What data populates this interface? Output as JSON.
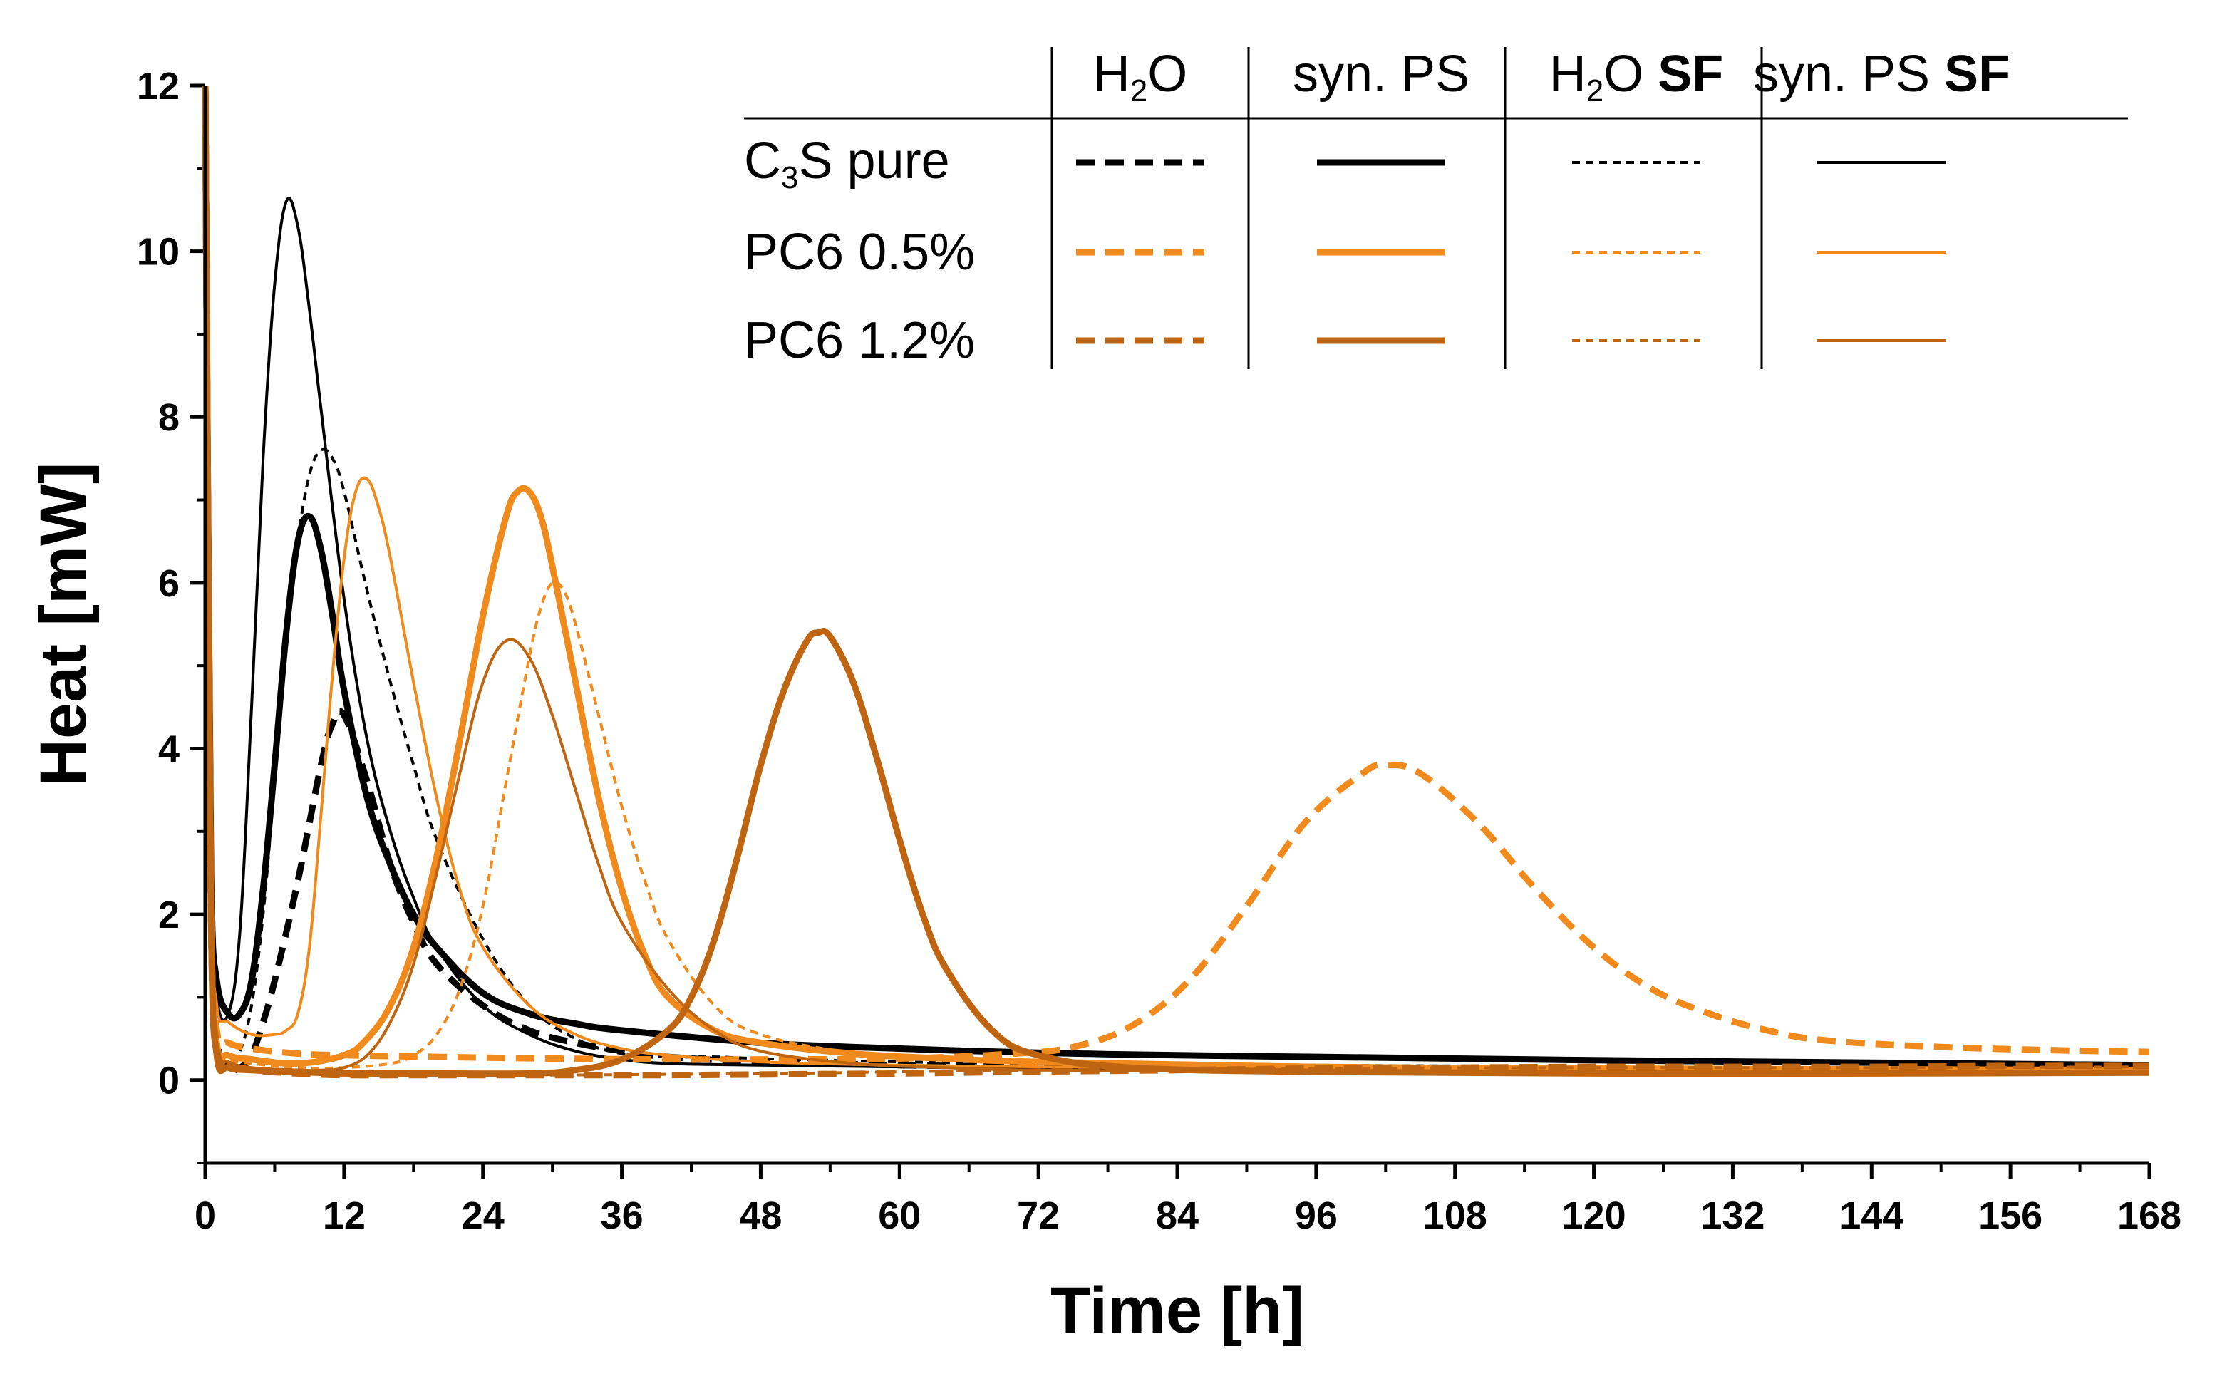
{
  "chart_data": {
    "type": "line",
    "title": "",
    "xlabel": "Time [h]",
    "ylabel": "Heat [mW]",
    "xlim": [
      0,
      168
    ],
    "ylim": [
      -1,
      12
    ],
    "xticks": [
      0,
      12,
      24,
      36,
      48,
      60,
      72,
      84,
      96,
      108,
      120,
      132,
      144,
      156,
      168
    ],
    "yticks": [
      0,
      2,
      4,
      6,
      8,
      10,
      12
    ],
    "x_tick_labels": [
      "0",
      "12",
      "24",
      "36",
      "48",
      "60",
      "72",
      "84",
      "96",
      "108",
      "120",
      "132",
      "144",
      "156",
      "168"
    ],
    "y_tick_labels": [
      "0",
      "2",
      "4",
      "6",
      "8",
      "10",
      "12"
    ],
    "colors": {
      "c3s_pure": "#000000",
      "pc6_05": "#F08A1C",
      "pc6_12": "#BF6410"
    },
    "legend": {
      "columns": [
        {
          "main": "H",
          "sub": "2",
          "rest": "O",
          "bold": ""
        },
        {
          "main": "syn. PS",
          "sub": "",
          "rest": "",
          "bold": ""
        },
        {
          "main": "H",
          "sub": "2",
          "rest": "O ",
          "bold": "SF"
        },
        {
          "main": "syn. PS ",
          "sub": "",
          "rest": "",
          "bold": "SF"
        }
      ],
      "rows": [
        {
          "main": "C",
          "sub": "3",
          "rest": "S pure"
        },
        {
          "main": "PC6 0.5%",
          "sub": "",
          "rest": ""
        },
        {
          "main": "PC6 1.2%",
          "sub": "",
          "rest": ""
        }
      ]
    },
    "series": [
      {
        "name": "C3S pure, H2O",
        "color_key": "c3s_pure",
        "style": "dashed-thick",
        "x": [
          0,
          0.5,
          1,
          2,
          3,
          4,
          5,
          6,
          8,
          10,
          11,
          12,
          14,
          16,
          18,
          20,
          24,
          28,
          32,
          36,
          40,
          48,
          60,
          72,
          84,
          96,
          120,
          144,
          168
        ],
        "y": [
          12,
          2,
          0.5,
          0.15,
          0.15,
          0.3,
          0.7,
          1.2,
          2.4,
          3.8,
          4.3,
          4.4,
          3.6,
          2.6,
          1.9,
          1.4,
          0.9,
          0.6,
          0.45,
          0.35,
          0.28,
          0.22,
          0.18,
          0.16,
          0.15,
          0.14,
          0.13,
          0.12,
          0.12
        ]
      },
      {
        "name": "C3S pure, syn. PS",
        "color_key": "c3s_pure",
        "style": "solid-thick",
        "x": [
          0,
          0.5,
          1,
          2,
          3,
          4,
          5,
          6,
          7,
          8,
          9,
          10,
          11,
          12,
          14,
          16,
          18,
          20,
          24,
          28,
          32,
          36,
          48,
          60,
          72,
          84,
          96,
          120,
          144,
          168
        ],
        "y": [
          12,
          2.5,
          1.2,
          0.8,
          0.8,
          1.2,
          2.3,
          3.8,
          5.4,
          6.5,
          6.8,
          6.4,
          5.6,
          4.7,
          3.4,
          2.6,
          2.0,
          1.6,
          1.05,
          0.8,
          0.68,
          0.6,
          0.45,
          0.38,
          0.33,
          0.3,
          0.28,
          0.24,
          0.21,
          0.18
        ]
      },
      {
        "name": "C3S pure, H2O SF",
        "color_key": "c3s_pure",
        "style": "dotted-thin",
        "x": [
          0,
          0.5,
          1,
          2,
          3,
          4,
          5,
          6,
          7,
          8,
          9,
          10,
          11,
          12,
          14,
          16,
          18,
          20,
          24,
          28,
          32,
          36,
          40,
          44,
          48,
          60,
          72,
          96,
          120,
          144,
          168
        ],
        "y": [
          12,
          2,
          0.5,
          0.2,
          0.35,
          0.9,
          2.0,
          3.6,
          5.2,
          6.5,
          7.3,
          7.6,
          7.5,
          7.1,
          5.9,
          4.8,
          3.8,
          2.9,
          1.7,
          0.9,
          0.5,
          0.32,
          0.28,
          0.28,
          0.26,
          0.22,
          0.2,
          0.18,
          0.16,
          0.14,
          0.12
        ]
      },
      {
        "name": "C3S pure, syn. PS SF",
        "color_key": "c3s_pure",
        "style": "solid-thin",
        "x": [
          0,
          0.5,
          1,
          2,
          3,
          4,
          5,
          6,
          7,
          8,
          9,
          10,
          12,
          14,
          16,
          18,
          20,
          24,
          28,
          32,
          36,
          40,
          48,
          60,
          72,
          96,
          120,
          144,
          168
        ],
        "y": [
          12,
          2.5,
          1.0,
          0.8,
          1.8,
          4.5,
          7.5,
          9.6,
          10.6,
          10.3,
          9.3,
          8.1,
          5.8,
          4.1,
          3.0,
          2.2,
          1.6,
          0.9,
          0.55,
          0.35,
          0.25,
          0.2,
          0.18,
          0.16,
          0.15,
          0.14,
          0.13,
          0.12,
          0.12
        ]
      },
      {
        "name": "PC6 0.5%, H2O",
        "color_key": "pc6_05",
        "style": "dashed-thick",
        "x": [
          0,
          0.5,
          1,
          2,
          4,
          8,
          12,
          20,
          30,
          40,
          50,
          60,
          70,
          75,
          80,
          85,
          90,
          95,
          100,
          102,
          105,
          110,
          115,
          120,
          125,
          130,
          135,
          140,
          150,
          160,
          168
        ],
        "y": [
          12,
          2,
          0.6,
          0.45,
          0.38,
          0.32,
          0.3,
          0.28,
          0.26,
          0.25,
          0.25,
          0.26,
          0.32,
          0.4,
          0.65,
          1.2,
          2.1,
          3.1,
          3.7,
          3.8,
          3.7,
          3.1,
          2.3,
          1.6,
          1.1,
          0.8,
          0.6,
          0.48,
          0.4,
          0.36,
          0.34
        ]
      },
      {
        "name": "PC6 0.5%, syn. PS",
        "color_key": "pc6_05",
        "style": "solid-thick",
        "x": [
          0,
          0.5,
          1,
          2,
          4,
          8,
          12,
          14,
          16,
          18,
          20,
          22,
          24,
          26,
          27,
          28,
          29,
          30,
          32,
          34,
          36,
          38,
          40,
          44,
          48,
          56,
          64,
          72,
          96,
          120,
          144,
          168
        ],
        "y": [
          12,
          2,
          0.45,
          0.3,
          0.25,
          0.2,
          0.3,
          0.5,
          0.9,
          1.6,
          2.7,
          4.1,
          5.6,
          6.8,
          7.1,
          7.1,
          6.8,
          6.2,
          4.8,
          3.4,
          2.3,
          1.5,
          1.0,
          0.6,
          0.45,
          0.32,
          0.26,
          0.22,
          0.16,
          0.14,
          0.13,
          0.12
        ]
      },
      {
        "name": "PC6 0.5%, H2O SF",
        "color_key": "pc6_05",
        "style": "dotted-thin",
        "x": [
          0,
          0.5,
          1,
          2,
          4,
          8,
          12,
          16,
          18,
          20,
          22,
          24,
          26,
          28,
          29,
          30,
          31,
          32,
          34,
          36,
          38,
          40,
          44,
          48,
          56,
          64,
          72,
          96,
          120,
          144,
          168
        ],
        "y": [
          12,
          2,
          0.4,
          0.25,
          0.2,
          0.15,
          0.15,
          0.2,
          0.3,
          0.55,
          1.1,
          2.1,
          3.6,
          5.1,
          5.7,
          6.0,
          5.9,
          5.5,
          4.4,
          3.3,
          2.4,
          1.7,
          0.9,
          0.55,
          0.33,
          0.27,
          0.24,
          0.18,
          0.15,
          0.13,
          0.12
        ]
      },
      {
        "name": "PC6 0.5%, syn. PS SF",
        "color_key": "pc6_05",
        "style": "solid-thin",
        "x": [
          0,
          0.5,
          1,
          2,
          4,
          6,
          7,
          8,
          9,
          10,
          11,
          12,
          13,
          14,
          15,
          16,
          18,
          20,
          22,
          24,
          28,
          32,
          36,
          40,
          48,
          60,
          72,
          96,
          120,
          144,
          168
        ],
        "y": [
          12,
          2.5,
          0.9,
          0.7,
          0.55,
          0.55,
          0.6,
          0.8,
          1.6,
          3.2,
          4.9,
          6.3,
          7.1,
          7.25,
          6.9,
          6.3,
          4.8,
          3.4,
          2.3,
          1.6,
          0.9,
          0.55,
          0.38,
          0.3,
          0.22,
          0.18,
          0.16,
          0.14,
          0.13,
          0.12,
          0.12
        ]
      },
      {
        "name": "PC6 1.2%, H2O",
        "color_key": "pc6_12",
        "style": "dashed-thick",
        "x": [
          0,
          0.5,
          1,
          2,
          4,
          8,
          12,
          20,
          30,
          40,
          50,
          60,
          70,
          84,
          96,
          108,
          120,
          132,
          144,
          156,
          168
        ],
        "y": [
          12,
          2,
          0.4,
          0.2,
          0.12,
          0.08,
          0.06,
          0.06,
          0.06,
          0.06,
          0.07,
          0.08,
          0.1,
          0.12,
          0.14,
          0.15,
          0.16,
          0.16,
          0.16,
          0.17,
          0.17
        ]
      },
      {
        "name": "PC6 1.2%, syn. PS",
        "color_key": "pc6_12",
        "style": "solid-thick",
        "x": [
          0,
          0.5,
          1,
          2,
          4,
          8,
          12,
          20,
          28,
          32,
          36,
          40,
          42,
          44,
          46,
          48,
          50,
          52,
          53,
          54,
          56,
          58,
          60,
          62,
          64,
          68,
          72,
          80,
          96,
          120,
          144,
          168
        ],
        "y": [
          12,
          2,
          0.3,
          0.15,
          0.12,
          0.1,
          0.08,
          0.08,
          0.08,
          0.12,
          0.25,
          0.6,
          1.0,
          1.7,
          2.7,
          3.8,
          4.7,
          5.3,
          5.4,
          5.35,
          4.8,
          3.9,
          2.9,
          2.0,
          1.35,
          0.6,
          0.3,
          0.15,
          0.1,
          0.08,
          0.08,
          0.09
        ]
      },
      {
        "name": "PC6 1.2%, H2O SF",
        "color_key": "pc6_12",
        "style": "dotted-thin",
        "x": [
          0,
          0.5,
          1,
          2,
          4,
          8,
          12,
          20,
          30,
          40,
          50,
          60,
          72,
          96,
          120,
          144,
          168
        ],
        "y": [
          12,
          2,
          0.35,
          0.2,
          0.12,
          0.08,
          0.06,
          0.06,
          0.06,
          0.07,
          0.08,
          0.1,
          0.12,
          0.14,
          0.15,
          0.15,
          0.16
        ]
      },
      {
        "name": "PC6 1.2%, syn. PS SF",
        "color_key": "pc6_12",
        "style": "solid-thin",
        "x": [
          0,
          0.5,
          1,
          2,
          4,
          8,
          10,
          12,
          14,
          16,
          18,
          20,
          22,
          24,
          26,
          28,
          30,
          32,
          34,
          36,
          40,
          44,
          48,
          56,
          64,
          72,
          96,
          120,
          144,
          168
        ],
        "y": [
          12,
          2,
          0.35,
          0.22,
          0.15,
          0.12,
          0.12,
          0.15,
          0.3,
          0.7,
          1.4,
          2.5,
          3.7,
          4.8,
          5.3,
          5.1,
          4.4,
          3.5,
          2.6,
          1.9,
          1.1,
          0.6,
          0.35,
          0.2,
          0.15,
          0.12,
          0.1,
          0.1,
          0.09,
          0.09
        ]
      }
    ]
  }
}
